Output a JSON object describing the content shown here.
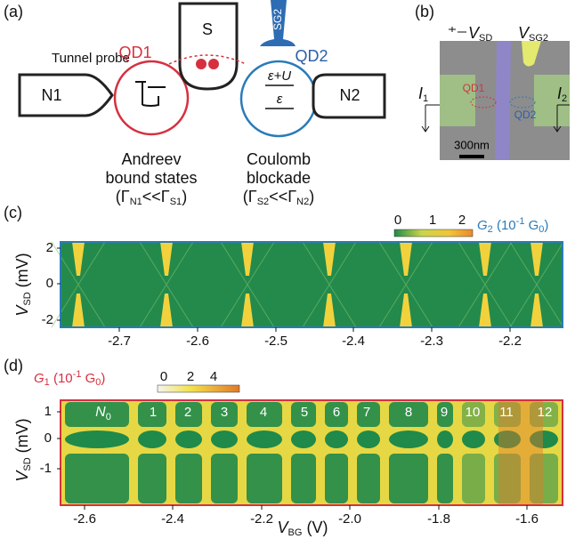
{
  "panel_a": {
    "label": "(a)",
    "tunnel_probe": "Tunnel probe",
    "n1": "N1",
    "n2": "N2",
    "s": "S",
    "sg2": "SG2",
    "qd1": "QD1",
    "qd2": "QD2",
    "level_upper": "ε+U",
    "level_lower": "ε",
    "left_caption": [
      "Andreev",
      "bound states"
    ],
    "left_condition": [
      "(Γ",
      "N1",
      "<<Γ",
      "S1",
      ")"
    ],
    "right_caption": [
      "Coulomb",
      "blockade"
    ],
    "right_condition": [
      "(Γ",
      "S2",
      "<<Γ",
      "N2",
      ")"
    ]
  },
  "panel_b": {
    "label": "(b)",
    "v_sd": [
      "V",
      "SD"
    ],
    "v_sg2": [
      "V",
      "SG2"
    ],
    "i1": [
      "I",
      "1"
    ],
    "i2": [
      "I",
      "2"
    ],
    "qd1": "QD1",
    "qd2": "QD2",
    "scale_bar": "300nm"
  },
  "panel_c": {
    "label": "(c)",
    "colorbar_ticks": [
      0,
      1,
      2
    ],
    "colorbar_label": [
      "G",
      "2",
      " (10",
      "-1",
      " G",
      "0",
      ")"
    ],
    "y_label": [
      "V",
      "SD",
      " (mV)"
    ],
    "yticks": [
      2,
      0,
      -2
    ],
    "xticks": [
      -2.7,
      -2.6,
      -2.5,
      -2.4,
      -2.3,
      -2.2
    ]
  },
  "panel_d": {
    "label": "(d)",
    "colorbar_ticks": [
      0,
      2,
      4
    ],
    "colorbar_label": [
      "G",
      "1",
      " (10",
      "-1",
      " G",
      "0",
      ")"
    ],
    "y_label": [
      "V",
      "SD",
      " (mV)"
    ],
    "yticks": [
      1,
      0,
      -1
    ],
    "xticks": [
      -2.6,
      -2.4,
      -2.2,
      {
        "value": -2.0,
        "label": "-2.0"
      },
      -1.8,
      -1.6
    ],
    "x_label": [
      "V",
      "BG",
      " (V)"
    ],
    "annotations": [
      [
        "N",
        "0"
      ],
      "1",
      "2",
      "3",
      "4",
      "5",
      "6",
      "7",
      "8",
      "9",
      "10",
      "11",
      "12"
    ]
  }
}
